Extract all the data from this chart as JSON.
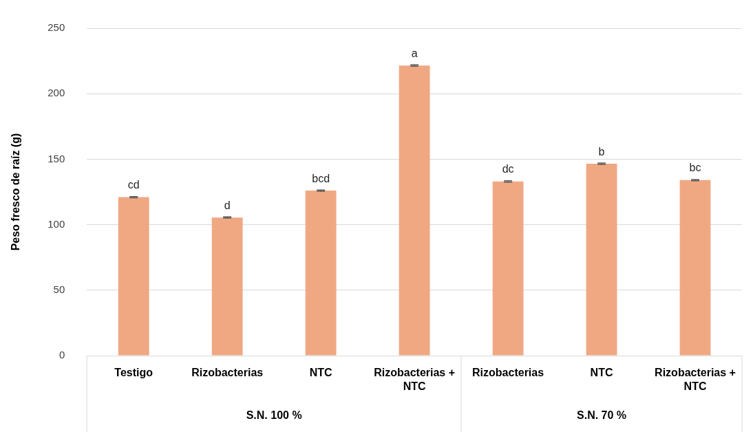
{
  "chart_data": {
    "type": "bar",
    "ylabel": "Peso fresco de raíz (g)",
    "categories": [
      "Testigo",
      "Rizobacterias",
      "NTC",
      "Rizobacterias + NTC",
      "Rizobacterias",
      "NTC",
      "Rizobacterias + NTC"
    ],
    "values": [
      121,
      105.5,
      126,
      221.5,
      133,
      146.5,
      134
    ],
    "errors": [
      0.5,
      0.5,
      0.5,
      0.5,
      0.5,
      0.5,
      0.5
    ],
    "value_labels": [
      "cd",
      "d",
      "bcd",
      "a",
      "dc",
      "b",
      "bc"
    ],
    "color": "#f0a883",
    "ylim": [
      0,
      250
    ],
    "yticks": [
      0,
      50,
      100,
      150,
      200,
      250
    ],
    "grid": "y",
    "legend": false,
    "annotations": [
      "S.N. 100 %",
      "S.N. 70 %"
    ]
  }
}
